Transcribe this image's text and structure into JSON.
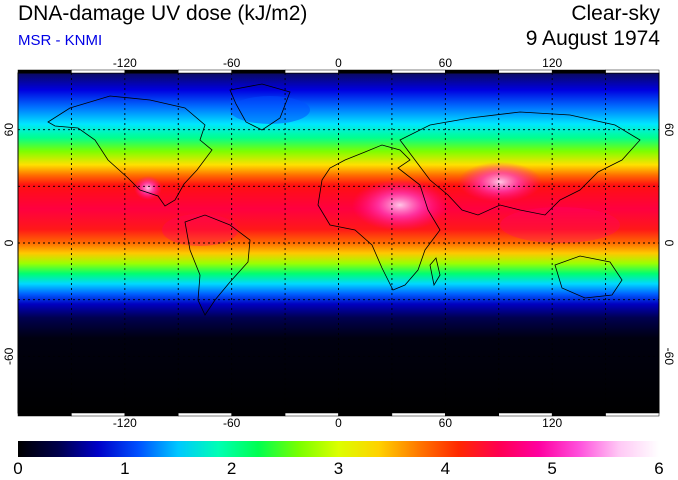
{
  "header": {
    "title": "DNA-damage UV dose (kJ/m2)",
    "source": "MSR - KNMI",
    "condition": "Clear-sky",
    "date": "9 August 1974"
  },
  "map": {
    "projection": "equirectangular",
    "lon_range": [
      -180,
      180
    ],
    "lat_range": [
      -90,
      90
    ],
    "lon_ticks": [
      -120,
      -60,
      0,
      60,
      120
    ],
    "lat_ticks": [
      60,
      0,
      -60
    ],
    "grid_lons": [
      -150,
      -120,
      -90,
      -60,
      -30,
      0,
      30,
      60,
      90,
      120,
      150
    ],
    "grid_lats": [
      60,
      30,
      0,
      -30,
      -60
    ],
    "grid": "dotted"
  },
  "colorbar": {
    "min": 0,
    "max": 6,
    "tick_labels": [
      "0",
      "1",
      "2",
      "3",
      "4",
      "5",
      "6"
    ],
    "colors": [
      "#000000",
      "#00004a",
      "#0000c8",
      "#0050ff",
      "#00c8ff",
      "#00ffb4",
      "#00ff50",
      "#78ff00",
      "#dcff00",
      "#ffd200",
      "#ff7800",
      "#ff2800",
      "#ff0050",
      "#ff00a0",
      "#ff50dc",
      "#ffc8f5",
      "#ffffff"
    ]
  }
}
